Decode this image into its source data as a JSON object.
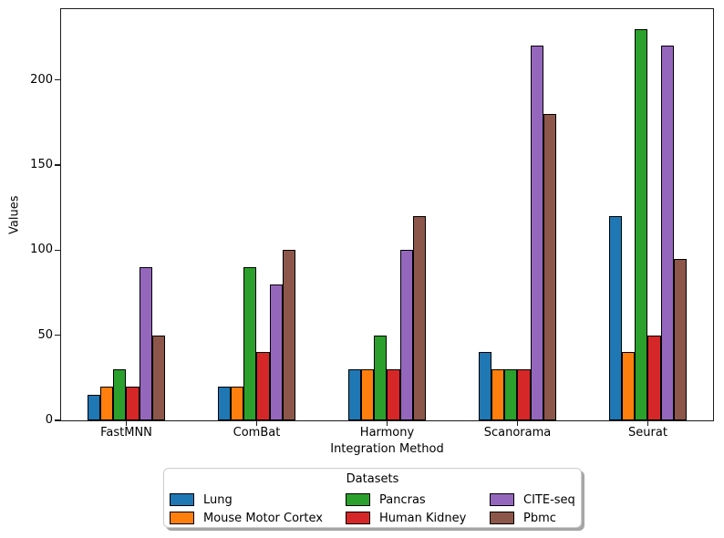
{
  "chart_data": {
    "type": "bar",
    "title": "",
    "xlabel": "Integration Method",
    "ylabel": "Values",
    "categories": [
      "FastMNN",
      "ComBat",
      "Harmony",
      "Scanorama",
      "Seurat"
    ],
    "y_ticks": [
      0,
      50,
      100,
      150,
      200
    ],
    "ylim": [
      0,
      241.5
    ],
    "grid": false,
    "legend": {
      "title": "Datasets",
      "position": "below-center",
      "columns": 3
    },
    "series": [
      {
        "name": "Lung",
        "color": "#1f77b4",
        "values": [
          15,
          20,
          30,
          40,
          120
        ]
      },
      {
        "name": "Mouse Motor Cortex",
        "color": "#ff7f0e",
        "values": [
          20,
          20,
          30,
          30,
          40
        ]
      },
      {
        "name": "Pancras",
        "color": "#2ca02c",
        "values": [
          30,
          90,
          50,
          30,
          230
        ]
      },
      {
        "name": "Human Kidney",
        "color": "#d62728",
        "values": [
          20,
          40,
          30,
          30,
          50
        ]
      },
      {
        "name": "CITE-seq",
        "color": "#9467bd",
        "values": [
          90,
          80,
          100,
          220,
          220
        ]
      },
      {
        "name": "Pbmc",
        "color": "#8c564b",
        "values": [
          50,
          100,
          120,
          180,
          95
        ]
      }
    ],
    "colors": {
      "background": "#ffffff",
      "spine": "#1c1c1c",
      "bar_edge": "#000000",
      "legend_shadow": "#a6a6a6"
    }
  }
}
